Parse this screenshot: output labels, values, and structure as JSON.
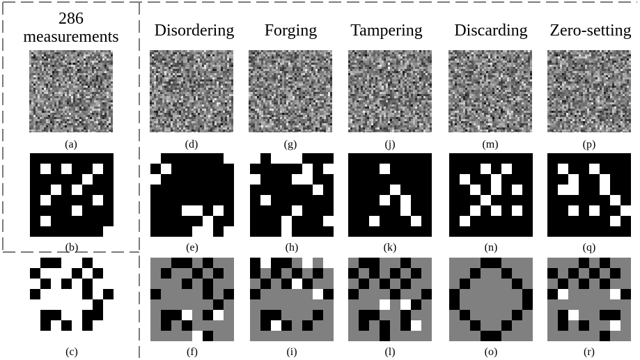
{
  "left_header": {
    "line1": "286",
    "line2": "measurements"
  },
  "column_headers": [
    "Disordering",
    "Forging",
    "Tampering",
    "Discarding",
    "Zero-setting"
  ],
  "colors": {
    "black": "#000000",
    "white": "#ffffff",
    "gray": "#808080",
    "guide": "#7a7a7a"
  },
  "rows": [
    {
      "kind": "noise",
      "labels": [
        "(a)",
        "(d)",
        "(g)",
        "(j)",
        "(m)",
        "(p)"
      ]
    },
    {
      "kind": "binary",
      "labels": [
        "(b)",
        "(e)",
        "(h)",
        "(k)",
        "(n)",
        "(q)"
      ]
    },
    {
      "kind": "ternary",
      "labels": [
        "(c)",
        "(f)",
        "(i)",
        "(l)",
        "(o)",
        "(r)"
      ]
    }
  ]
}
